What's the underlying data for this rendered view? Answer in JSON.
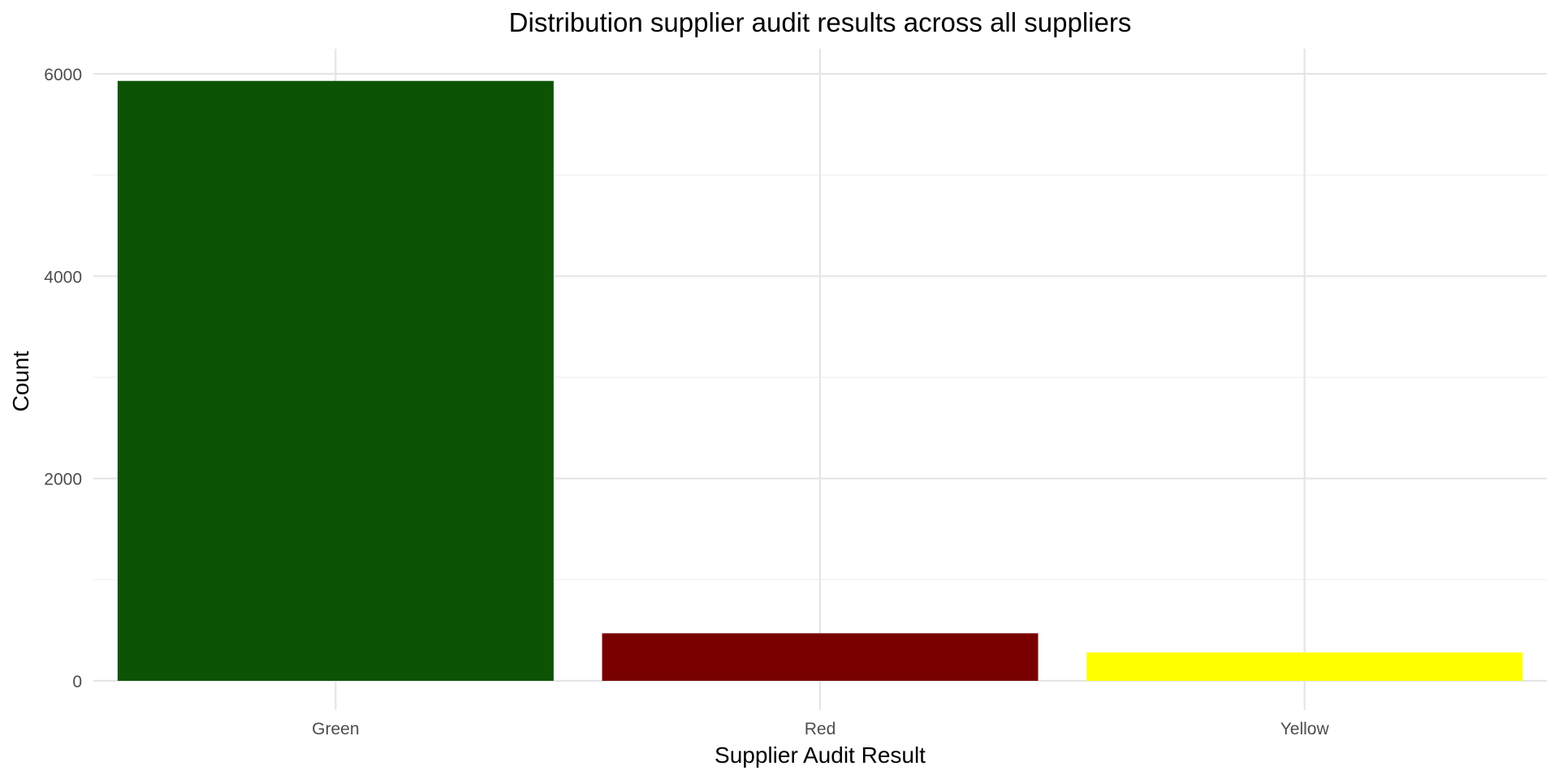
{
  "chart_data": {
    "type": "bar",
    "title": "Distribution supplier audit results across all suppliers",
    "xlabel": "Supplier Audit Result",
    "ylabel": "Count",
    "categories": [
      "Green",
      "Red",
      "Yellow"
    ],
    "values": [
      5930,
      470,
      280
    ],
    "colors": [
      "#0c5404",
      "#780000",
      "#ffff00"
    ],
    "ylim": [
      0,
      6200
    ],
    "yticks": [
      0,
      2000,
      4000,
      6000
    ],
    "ytick_labels": [
      "0",
      "2000",
      "4000",
      "6000"
    ],
    "grid": true,
    "legend": "none"
  }
}
